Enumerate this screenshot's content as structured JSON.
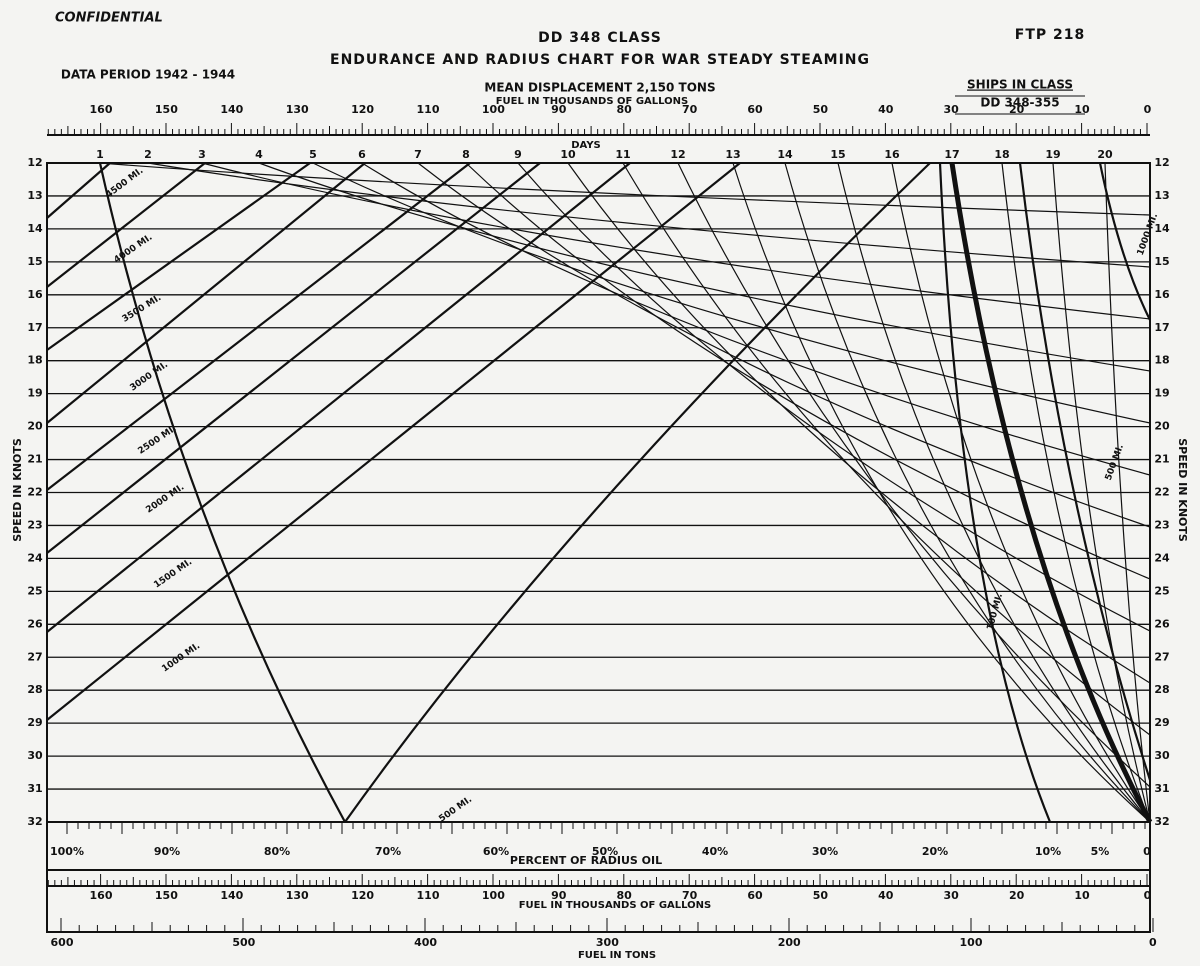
{
  "header": {
    "confidential": "CONFIDENTIAL",
    "class": "DD 348 CLASS",
    "title": "ENDURANCE AND RADIUS CHART FOR WAR STEADY STEAMING",
    "ftp": "FTP 218",
    "period": "DATA PERIOD 1942 - 1944",
    "displacement": "MEAN DISPLACEMENT 2,150 TONS",
    "fuel_top": "FUEL IN THOUSANDS OF GALLONS",
    "ships_title": "SHIPS IN CLASS",
    "ships": "DD 348-355"
  },
  "scales": {
    "gallons_labels": [
      "160",
      "150",
      "140",
      "130",
      "120",
      "110",
      "100",
      "90",
      "80",
      "70",
      "60",
      "50",
      "40",
      "30",
      "20",
      "10",
      "0"
    ],
    "days_title": "DAYS",
    "days": [
      "1",
      "2",
      "3",
      "4",
      "5",
      "6",
      "7",
      "8",
      "9",
      "10",
      "11",
      "12",
      "13",
      "14",
      "15",
      "16",
      "17",
      "18",
      "19",
      "20"
    ],
    "speed_title": "SPEED IN KNOTS",
    "speeds": [
      "12",
      "13",
      "14",
      "15",
      "16",
      "17",
      "18",
      "19",
      "20",
      "21",
      "22",
      "23",
      "24",
      "25",
      "26",
      "27",
      "28",
      "29",
      "30",
      "31",
      "32"
    ],
    "percent_labels": [
      "100%",
      "90%",
      "80%",
      "70%",
      "60%",
      "50%",
      "40%",
      "30%",
      "20%",
      "10%",
      "5%",
      "0"
    ],
    "percent_title": "PERCENT OF RADIUS OIL",
    "gallons_bottom_title": "FUEL IN THOUSANDS OF GALLONS",
    "tons_labels": [
      "600",
      "500",
      "400",
      "300",
      "200",
      "100",
      "0"
    ],
    "tons_title": "FUEL IN TONS"
  },
  "miles": [
    "4500 MI.",
    "4000 MI.",
    "3500 MI.",
    "3000 MI.",
    "2500 MI.",
    "2000 MI.",
    "1500 MI.",
    "1000 MI.",
    "500 MI."
  ],
  "miles_right": [
    "1000 MI.",
    "500 MI.",
    "100 MI."
  ]
}
